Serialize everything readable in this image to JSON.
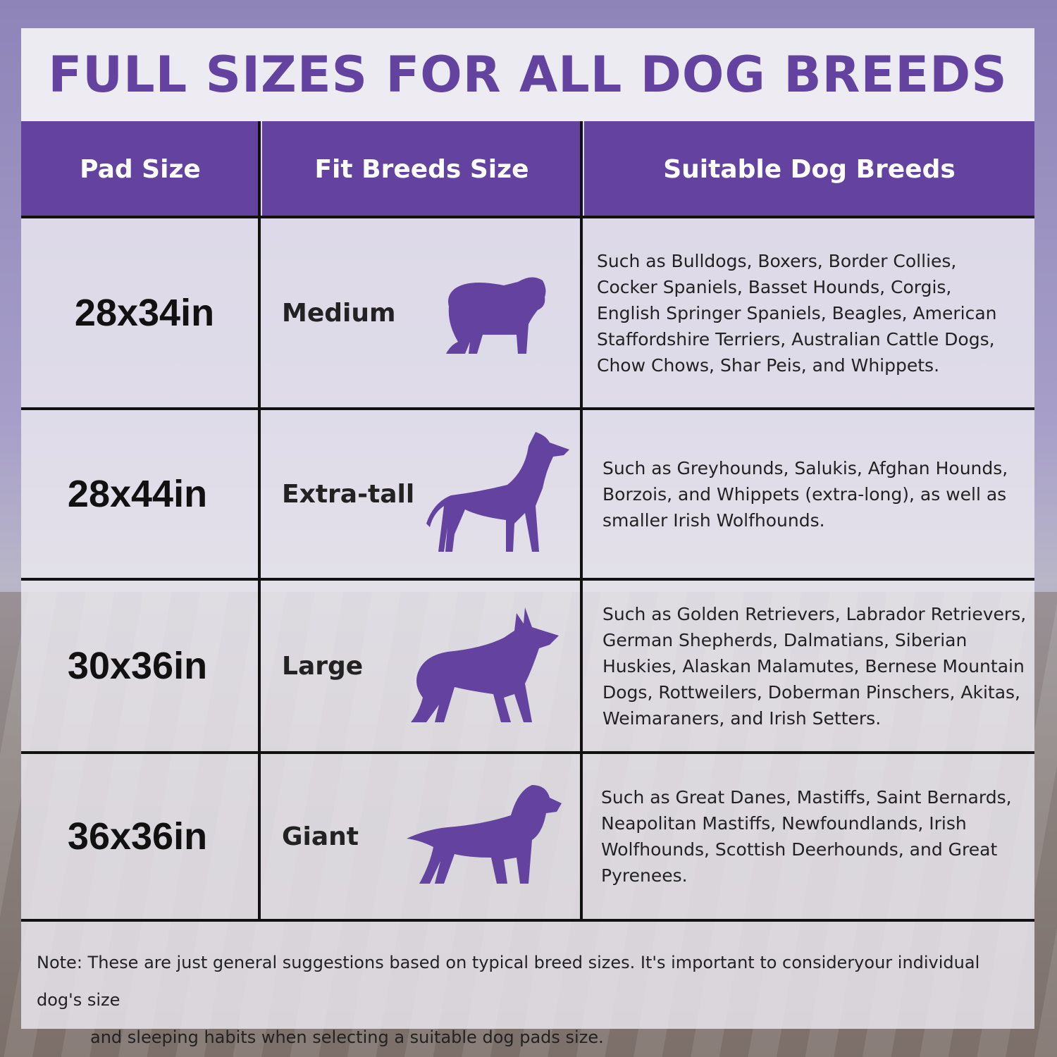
{
  "title": "FULL SIZES FOR ALL DOG BREEDS",
  "accent_color": "#6342a0",
  "headers": [
    "Pad Size",
    "Fit Breeds Size",
    "Suitable Dog Breeds"
  ],
  "rows": [
    {
      "size": "28x34in",
      "fit": "Medium",
      "icon": "bulldog-silhouette-icon",
      "breeds": "Such as Bulldogs, Boxers, Border Collies, Cocker Spaniels, Basset Hounds, Corgis, English Springer Spaniels, Beagles, American Staffordshire Terriers, Australian Cattle Dogs, Chow Chows, Shar Peis, and Whippets."
    },
    {
      "size": "28x44in",
      "fit": "Extra-tall",
      "icon": "greyhound-silhouette-icon",
      "breeds": "Such as Greyhounds, Salukis, Afghan Hounds, Borzois, and Whippets (extra-long), as well as smaller Irish Wolfhounds."
    },
    {
      "size": "30x36in",
      "fit": "Large",
      "icon": "shepherd-silhouette-icon",
      "breeds": "Such as Golden Retrievers, Labrador Retrievers, German Shepherds, Dalmatians, Siberian Huskies, Alaskan Malamutes, Bernese Mountain Dogs, Rottweilers, Doberman Pinschers, Akitas, Weimaraners, and Irish Setters."
    },
    {
      "size": "36x36in",
      "fit": "Giant",
      "icon": "setter-silhouette-icon",
      "breeds": "Such as Great Danes, Mastiffs, Saint Bernards, Neapolitan Mastiffs, Newfoundlands, Irish Wolfhounds, Scottish Deerhounds, and Great Pyrenees."
    }
  ],
  "note": {
    "line1": "Note: These are just general suggestions based on typical breed sizes. It's important to consideryour individual dog's size",
    "line2": "and sleeping habits when selecting a suitable dog pads size."
  }
}
